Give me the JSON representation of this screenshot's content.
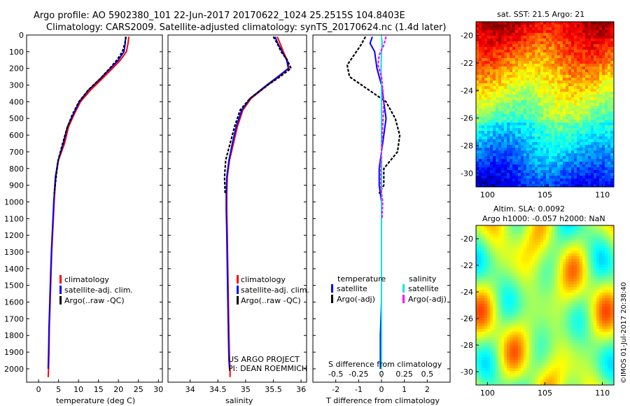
{
  "header": {
    "line1": "Argo profile: AO 5902380_101 22-Jun-2017 20170622_1024 25.2515S 104.8403E",
    "line2": "Climatology: CARS2009. Satellite-adjusted climatology: synTS_20170624.nc (1.4d later)"
  },
  "colors": {
    "clim": "#ff0000",
    "sat": "#0000ff",
    "argo": "#000000",
    "sal_sat": "#00e5e5",
    "sal_argo": "#ff00ff"
  },
  "chart_data": [
    {
      "type": "line",
      "title": "",
      "xlabel": "temperature (deg C)",
      "ylabel": "",
      "xlim": [
        -3,
        31
      ],
      "ylim": [
        2080,
        0
      ],
      "xticks": [
        "0",
        "5",
        "10",
        "15",
        "20",
        "25",
        "30"
      ],
      "xtick_values": [
        0,
        5,
        10,
        15,
        20,
        25,
        30
      ],
      "yticks": [
        "0",
        "100",
        "200",
        "300",
        "400",
        "500",
        "600",
        "700",
        "800",
        "900",
        "1000",
        "1100",
        "1200",
        "1300",
        "1400",
        "1500",
        "1600",
        "1700",
        "1800",
        "1900",
        "2000"
      ],
      "ytick_values": [
        0,
        100,
        200,
        300,
        400,
        500,
        600,
        700,
        800,
        900,
        1000,
        1100,
        1200,
        1300,
        1400,
        1500,
        1600,
        1700,
        1800,
        1900,
        2000
      ],
      "legend": [
        "climatology",
        "satellite-adj. clim.",
        "Argo(..raw -QC)"
      ],
      "series": [
        {
          "name": "climatology",
          "color": "#ff0000",
          "x": [
            22.6,
            22.4,
            22.0,
            20.5,
            18.5,
            16.0,
            13.0,
            10.5,
            9.0,
            7.5,
            6.5,
            5.0,
            4.3,
            3.9,
            3.6,
            3.3,
            3.1,
            2.9,
            2.7,
            2.6,
            2.5,
            2.4
          ],
          "y": [
            10,
            50,
            100,
            150,
            200,
            260,
            330,
            400,
            470,
            550,
            650,
            750,
            850,
            1000,
            1150,
            1300,
            1450,
            1600,
            1750,
            1900,
            2000,
            2050
          ]
        },
        {
          "name": "satellite-adj. clim.",
          "color": "#0000ff",
          "x": [
            21.8,
            21.7,
            21.4,
            20.0,
            18.0,
            15.5,
            12.5,
            10.2,
            8.8,
            7.2,
            6.2,
            4.9,
            4.2,
            3.8,
            3.5,
            3.2,
            3.0,
            2.8,
            2.6,
            2.5,
            2.4
          ],
          "y": [
            10,
            50,
            100,
            150,
            200,
            260,
            330,
            400,
            470,
            550,
            650,
            750,
            850,
            1000,
            1150,
            1300,
            1450,
            1600,
            1750,
            1900,
            2000
          ]
        },
        {
          "name": "Argo(..raw -QC)",
          "color": "#000000",
          "x": [
            21.9,
            21.6,
            21.0,
            19.6,
            17.8,
            15.5,
            12.4,
            10.1,
            8.4,
            7.1,
            5.9,
            4.8,
            4.4,
            3.9
          ],
          "y": [
            10,
            50,
            100,
            150,
            200,
            260,
            330,
            400,
            480,
            560,
            660,
            760,
            850,
            950
          ]
        }
      ]
    },
    {
      "type": "line",
      "xlabel": "salinity",
      "xlim": [
        33.6,
        36.1
      ],
      "ylim": [
        2080,
        0
      ],
      "xticks": [
        "34",
        "34.5",
        "35",
        "35.5",
        "36"
      ],
      "xtick_values": [
        34,
        34.5,
        35,
        35.5,
        36
      ],
      "legend": [
        "climatology",
        "satellite-adj. clim.",
        "Argo(..raw -QC)"
      ],
      "annotation": [
        "US ARGO PROJECT",
        "PI: DEAN ROEMMICH"
      ],
      "series": [
        {
          "name": "climatology",
          "color": "#ff0000",
          "x": [
            35.57,
            35.62,
            35.68,
            35.75,
            35.78,
            35.6,
            35.4,
            35.1,
            34.95,
            34.85,
            34.78,
            34.71,
            34.67,
            34.66,
            34.66,
            34.67,
            34.68,
            34.69,
            34.7,
            34.71,
            34.72,
            34.72
          ],
          "y": [
            10,
            50,
            100,
            150,
            200,
            250,
            300,
            380,
            450,
            550,
            650,
            750,
            850,
            950,
            1050,
            1200,
            1400,
            1600,
            1800,
            1950,
            2000,
            2050
          ]
        },
        {
          "name": "satellite-adj. clim.",
          "color": "#0000ff",
          "x": [
            35.53,
            35.58,
            35.66,
            35.74,
            35.77,
            35.58,
            35.38,
            35.08,
            34.93,
            34.83,
            34.76,
            34.7,
            34.66,
            34.65,
            34.65,
            34.66,
            34.67,
            34.68,
            34.69,
            34.7,
            34.71
          ],
          "y": [
            10,
            50,
            100,
            150,
            200,
            250,
            300,
            380,
            450,
            550,
            650,
            750,
            850,
            950,
            1050,
            1200,
            1400,
            1600,
            1800,
            1950,
            2000
          ]
        },
        {
          "name": "Argo(..raw -QC)",
          "color": "#000000",
          "x": [
            35.5,
            35.57,
            35.64,
            35.75,
            35.82,
            35.62,
            35.4,
            35.08,
            34.9,
            34.8,
            34.72,
            34.64,
            34.62,
            34.63
          ],
          "y": [
            10,
            50,
            100,
            150,
            200,
            250,
            300,
            380,
            450,
            550,
            650,
            750,
            850,
            950
          ]
        }
      ]
    },
    {
      "type": "line",
      "xlabel": "T difference from climatology",
      "secondary_xlabel": "S difference from climatology",
      "xlim": [
        -3,
        3
      ],
      "ylim": [
        2080,
        0
      ],
      "xticks": [
        "-2",
        "-1",
        "0",
        "1",
        "2"
      ],
      "xtick_values": [
        -2,
        -1,
        0,
        1,
        2
      ],
      "secondary_xticks": [
        "-0.5",
        "-0.25",
        "0",
        "0.25",
        "0.5"
      ],
      "secondary_xtick_values": [
        -0.5,
        -0.25,
        0,
        0.25,
        0.5
      ],
      "legend": [
        "temperature",
        "satellite",
        "Argo(-adj)",
        "salinity",
        "satellite",
        "Argo(-adj)"
      ],
      "series": [
        {
          "name": "temperature satellite",
          "color": "#0000ff",
          "x": [
            -0.4,
            -0.5,
            -0.3,
            -0.2,
            0.0,
            0.1,
            0.2,
            0.1,
            0.0,
            -0.1,
            -0.1,
            0.0,
            0.0,
            0.0,
            0.0,
            -0.05,
            -0.05
          ],
          "y": [
            10,
            50,
            100,
            200,
            300,
            400,
            500,
            600,
            700,
            800,
            900,
            1000,
            1200,
            1400,
            1600,
            1800,
            2000
          ]
        },
        {
          "name": "temperature Argo(-adj)",
          "color": "#000000",
          "x": [
            -0.7,
            -0.9,
            -1.2,
            -1.5,
            -1.4,
            0.2,
            0.6,
            0.8,
            0.7,
            0.1,
            0.1,
            -0.1
          ],
          "y": [
            10,
            60,
            120,
            180,
            250,
            400,
            500,
            600,
            700,
            800,
            900,
            950
          ]
        },
        {
          "name": "salinity satellite",
          "color": "#00e5e5",
          "x": [
            0.0,
            0.03,
            0.0,
            -0.02,
            0.0,
            0.0,
            0.0,
            0.0,
            0.0,
            0.0,
            0.0,
            0.0,
            0.0,
            0.0,
            0.0,
            0.0
          ],
          "y": [
            10,
            50,
            100,
            200,
            300,
            400,
            500,
            600,
            700,
            800,
            900,
            1000,
            1200,
            1400,
            1600,
            2000
          ]
        },
        {
          "name": "salinity Argo(-adj)",
          "color": "#ff00ff",
          "x": [
            0.2,
            0.1,
            -0.1,
            -0.15,
            0.0,
            0.1,
            0.05,
            0.0,
            -0.05,
            -0.05,
            0.05,
            0.02
          ],
          "y": [
            10,
            60,
            120,
            180,
            250,
            400,
            550,
            700,
            800,
            900,
            1000,
            1100
          ]
        }
      ]
    },
    {
      "type": "heatmap",
      "title": "sat. SST: 21.5 Argo: 21",
      "xlim": [
        99,
        111
      ],
      "ylim": [
        -31,
        -19
      ],
      "xticks": [
        "100",
        "105",
        "110"
      ],
      "yticks": [
        "-20",
        "-22",
        "-24",
        "-26",
        "-28",
        "-30"
      ]
    },
    {
      "type": "heatmap",
      "title_lines": [
        "Altim. SLA: 0.0092",
        "Argo h1000: -0.057 h2000: NaN"
      ],
      "xlim": [
        99,
        111
      ],
      "ylim": [
        -31,
        -19
      ],
      "xticks": [
        "100",
        "105",
        "110"
      ],
      "yticks": [
        "-20",
        "-22",
        "-24",
        "-26",
        "-28",
        "-30"
      ],
      "side_text": "©IMOS 01-Jul-2017 20:38:40"
    }
  ]
}
